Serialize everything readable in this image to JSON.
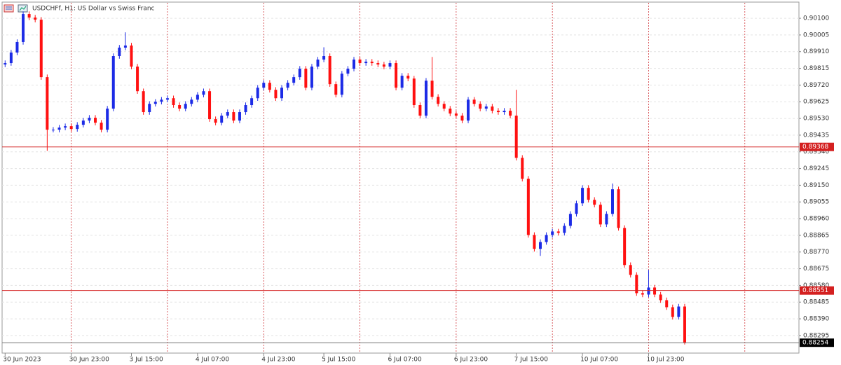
{
  "chart_data": {
    "type": "candlestick",
    "title": "USDCHFf, H1: US Dollar vs Swiss Franc",
    "up_color": "#1c2be6",
    "down_color": "#ff1010",
    "open": [
      0.89837,
      0.89845,
      0.89905,
      0.89965,
      0.90124,
      0.90104,
      0.90092,
      0.89765,
      0.89466,
      0.89466,
      0.89478,
      0.89486,
      0.8947,
      0.89494,
      0.89518,
      0.89534,
      0.89506,
      0.89466,
      0.89586,
      0.89885,
      0.89933,
      0.89945,
      0.89825,
      0.89685,
      0.89566,
      0.89613,
      0.89625,
      0.89637,
      0.89645,
      0.89606,
      0.89586,
      0.89613,
      0.89637,
      0.89665,
      0.89685,
      0.89526,
      0.89506,
      0.89546,
      0.89566,
      0.89518,
      0.89566,
      0.89606,
      0.89645,
      0.89705,
      0.89733,
      0.89693,
      0.89645,
      0.89705,
      0.89733,
      0.89765,
      0.89813,
      0.89705,
      0.89825,
      0.89865,
      0.89885,
      0.89725,
      0.89665,
      0.89785,
      0.89813,
      0.89865,
      0.89845,
      0.89853,
      0.89845,
      0.89837,
      0.89825,
      0.89845,
      0.89705,
      0.89773,
      0.89757,
      0.89606,
      0.89546,
      0.89745,
      0.89653,
      0.89613,
      0.89586,
      0.89558,
      0.89546,
      0.89518,
      0.89637,
      0.89613,
      0.89586,
      0.89598,
      0.89574,
      0.89566,
      0.89574,
      0.89546,
      0.89306,
      0.89187,
      0.88867,
      0.88788,
      0.88827,
      0.88867,
      0.88887,
      0.88879,
      0.88919,
      0.88987,
      0.89047,
      0.89135,
      0.89067,
      0.89039,
      0.88927,
      0.88987,
      0.89127,
      0.88907,
      0.88696,
      0.8864,
      0.88536,
      0.88528,
      0.88568,
      0.88528,
      0.88496,
      0.88456,
      0.88401,
      0.8846
    ],
    "high": [
      0.8986,
      0.8992,
      0.8998,
      0.90139,
      0.90139,
      0.90119,
      0.90107,
      0.8978,
      0.89481,
      0.89493,
      0.89501,
      0.89501,
      0.89509,
      0.89533,
      0.89549,
      0.89549,
      0.89521,
      0.89601,
      0.899,
      0.89948,
      0.9002,
      0.8996,
      0.8984,
      0.897,
      0.89628,
      0.8964,
      0.89652,
      0.8966,
      0.8966,
      0.89621,
      0.89628,
      0.89652,
      0.8968,
      0.897,
      0.897,
      0.89541,
      0.89561,
      0.89581,
      0.89581,
      0.89581,
      0.89621,
      0.8966,
      0.8972,
      0.89748,
      0.89748,
      0.89708,
      0.8972,
      0.89748,
      0.8978,
      0.89828,
      0.89828,
      0.8984,
      0.8988,
      0.89935,
      0.899,
      0.8974,
      0.898,
      0.89828,
      0.8988,
      0.8988,
      0.89868,
      0.89868,
      0.8986,
      0.89852,
      0.8986,
      0.8986,
      0.89788,
      0.89788,
      0.89772,
      0.89621,
      0.8976,
      0.8988,
      0.89668,
      0.89628,
      0.89601,
      0.89573,
      0.89561,
      0.89652,
      0.89652,
      0.89628,
      0.89613,
      0.89613,
      0.89589,
      0.89589,
      0.89589,
      0.89693,
      0.89321,
      0.89202,
      0.88882,
      0.88842,
      0.88882,
      0.88902,
      0.88902,
      0.88934,
      0.89002,
      0.89062,
      0.8915,
      0.8915,
      0.89082,
      0.89054,
      0.89002,
      0.8916,
      0.89142,
      0.88922,
      0.88711,
      0.88655,
      0.88551,
      0.88668,
      0.88583,
      0.88543,
      0.88511,
      0.88471,
      0.88475,
      0.88475
    ],
    "low": [
      0.89822,
      0.8983,
      0.8989,
      0.8995,
      0.90089,
      0.90077,
      0.8975,
      0.89346,
      0.89451,
      0.89451,
      0.89463,
      0.89455,
      0.89455,
      0.89479,
      0.89503,
      0.89491,
      0.89451,
      0.89451,
      0.89571,
      0.8987,
      0.89918,
      0.8981,
      0.8967,
      0.89551,
      0.89551,
      0.89598,
      0.8961,
      0.89622,
      0.89591,
      0.89571,
      0.89571,
      0.89598,
      0.89622,
      0.8965,
      0.89511,
      0.89491,
      0.89491,
      0.89531,
      0.89503,
      0.89503,
      0.89551,
      0.89591,
      0.8963,
      0.8969,
      0.89678,
      0.8963,
      0.8963,
      0.8969,
      0.89718,
      0.8975,
      0.8969,
      0.8969,
      0.8981,
      0.8985,
      0.8971,
      0.8965,
      0.8965,
      0.8977,
      0.89798,
      0.8983,
      0.8983,
      0.8983,
      0.89822,
      0.8981,
      0.8981,
      0.8969,
      0.8969,
      0.89742,
      0.89591,
      0.89531,
      0.89531,
      0.89638,
      0.89598,
      0.89571,
      0.89543,
      0.89531,
      0.89503,
      0.89503,
      0.89598,
      0.89571,
      0.89571,
      0.89559,
      0.89551,
      0.89551,
      0.89531,
      0.89291,
      0.89172,
      0.88852,
      0.88773,
      0.88748,
      0.88812,
      0.88852,
      0.88864,
      0.88864,
      0.88904,
      0.88972,
      0.89032,
      0.89052,
      0.89024,
      0.88912,
      0.88912,
      0.88972,
      0.88892,
      0.88681,
      0.88625,
      0.88521,
      0.88513,
      0.88513,
      0.88513,
      0.88481,
      0.88441,
      0.88386,
      0.88386,
      0.88244
    ],
    "close": [
      0.89845,
      0.89905,
      0.89965,
      0.90124,
      0.90104,
      0.90092,
      0.89765,
      0.89466,
      0.89466,
      0.89478,
      0.89486,
      0.8947,
      0.89494,
      0.89518,
      0.89534,
      0.89506,
      0.89466,
      0.89586,
      0.89885,
      0.89933,
      0.89945,
      0.89825,
      0.89685,
      0.89566,
      0.89613,
      0.89625,
      0.89637,
      0.89645,
      0.89606,
      0.89586,
      0.89613,
      0.89637,
      0.89665,
      0.89685,
      0.89526,
      0.89506,
      0.89546,
      0.89566,
      0.89518,
      0.89566,
      0.89606,
      0.89645,
      0.89705,
      0.89733,
      0.89693,
      0.89645,
      0.89705,
      0.89733,
      0.89765,
      0.89813,
      0.89705,
      0.89825,
      0.89865,
      0.89885,
      0.89725,
      0.89665,
      0.89785,
      0.89813,
      0.89865,
      0.89845,
      0.89853,
      0.89845,
      0.89837,
      0.89825,
      0.89845,
      0.89705,
      0.89773,
      0.89757,
      0.89606,
      0.89546,
      0.89745,
      0.89653,
      0.89613,
      0.89586,
      0.89558,
      0.89546,
      0.89518,
      0.89637,
      0.89613,
      0.89586,
      0.89598,
      0.89574,
      0.89566,
      0.89574,
      0.89546,
      0.89306,
      0.89187,
      0.88867,
      0.88788,
      0.88827,
      0.88867,
      0.88887,
      0.88879,
      0.88919,
      0.88987,
      0.89047,
      0.89135,
      0.89067,
      0.89039,
      0.88927,
      0.88987,
      0.89127,
      0.88907,
      0.88696,
      0.8864,
      0.88536,
      0.88528,
      0.88568,
      0.88528,
      0.88496,
      0.88456,
      0.88401,
      0.8846,
      0.88254
    ],
    "xlim": [
      -0.5,
      132
    ],
    "xticks": [
      {
        "value": 0,
        "label": "30 Jun 2023"
      },
      {
        "value": 11,
        "label": "30 Jun 23:00"
      },
      {
        "value": 21,
        "label": "3 Jul 15:00"
      },
      {
        "value": 32,
        "label": "4 Jul 07:00"
      },
      {
        "value": 43,
        "label": "4 Jul 23:00"
      },
      {
        "value": 53,
        "label": "5 Jul 15:00"
      },
      {
        "value": 64,
        "label": "6 Jul 07:00"
      },
      {
        "value": 75,
        "label": "6 Jul 23:00"
      },
      {
        "value": 85,
        "label": "7 Jul 15:00"
      },
      {
        "value": 96,
        "label": "10 Jul 07:00"
      },
      {
        "value": 107,
        "label": "10 Jul 23:00"
      }
    ],
    "separators": [
      11,
      27,
      43,
      59,
      75,
      91,
      107,
      123
    ],
    "separator_color": "#d0353a",
    "ylim": [
      0.88195,
      0.90188
    ],
    "yticks": [
      {
        "value": 0.901,
        "label": "0.90100"
      },
      0.90005,
      {
        "value": 0.8991,
        "label": "0.89910"
      },
      0.89815,
      {
        "value": 0.8972,
        "label": "0.89720"
      },
      0.89625,
      {
        "value": 0.8953,
        "label": "0.89530"
      },
      0.89435,
      {
        "value": 0.8934,
        "label": "0.89340"
      },
      0.89245,
      {
        "value": 0.8915,
        "label": "0.89150"
      },
      0.89055,
      {
        "value": 0.8896,
        "label": "0.88960"
      },
      0.88865,
      {
        "value": 0.8877,
        "label": "0.88770"
      },
      0.88675,
      {
        "value": 0.8858,
        "label": "0.88580"
      },
      0.88485,
      {
        "value": 0.8839,
        "label": "0.88390"
      },
      0.88295
    ],
    "grid": true,
    "levels": [
      {
        "value": 0.89368,
        "color": "#d42020"
      },
      {
        "value": 0.88551,
        "color": "#d42020"
      },
      {
        "value": 0.88254,
        "color": "#000000"
      }
    ]
  }
}
